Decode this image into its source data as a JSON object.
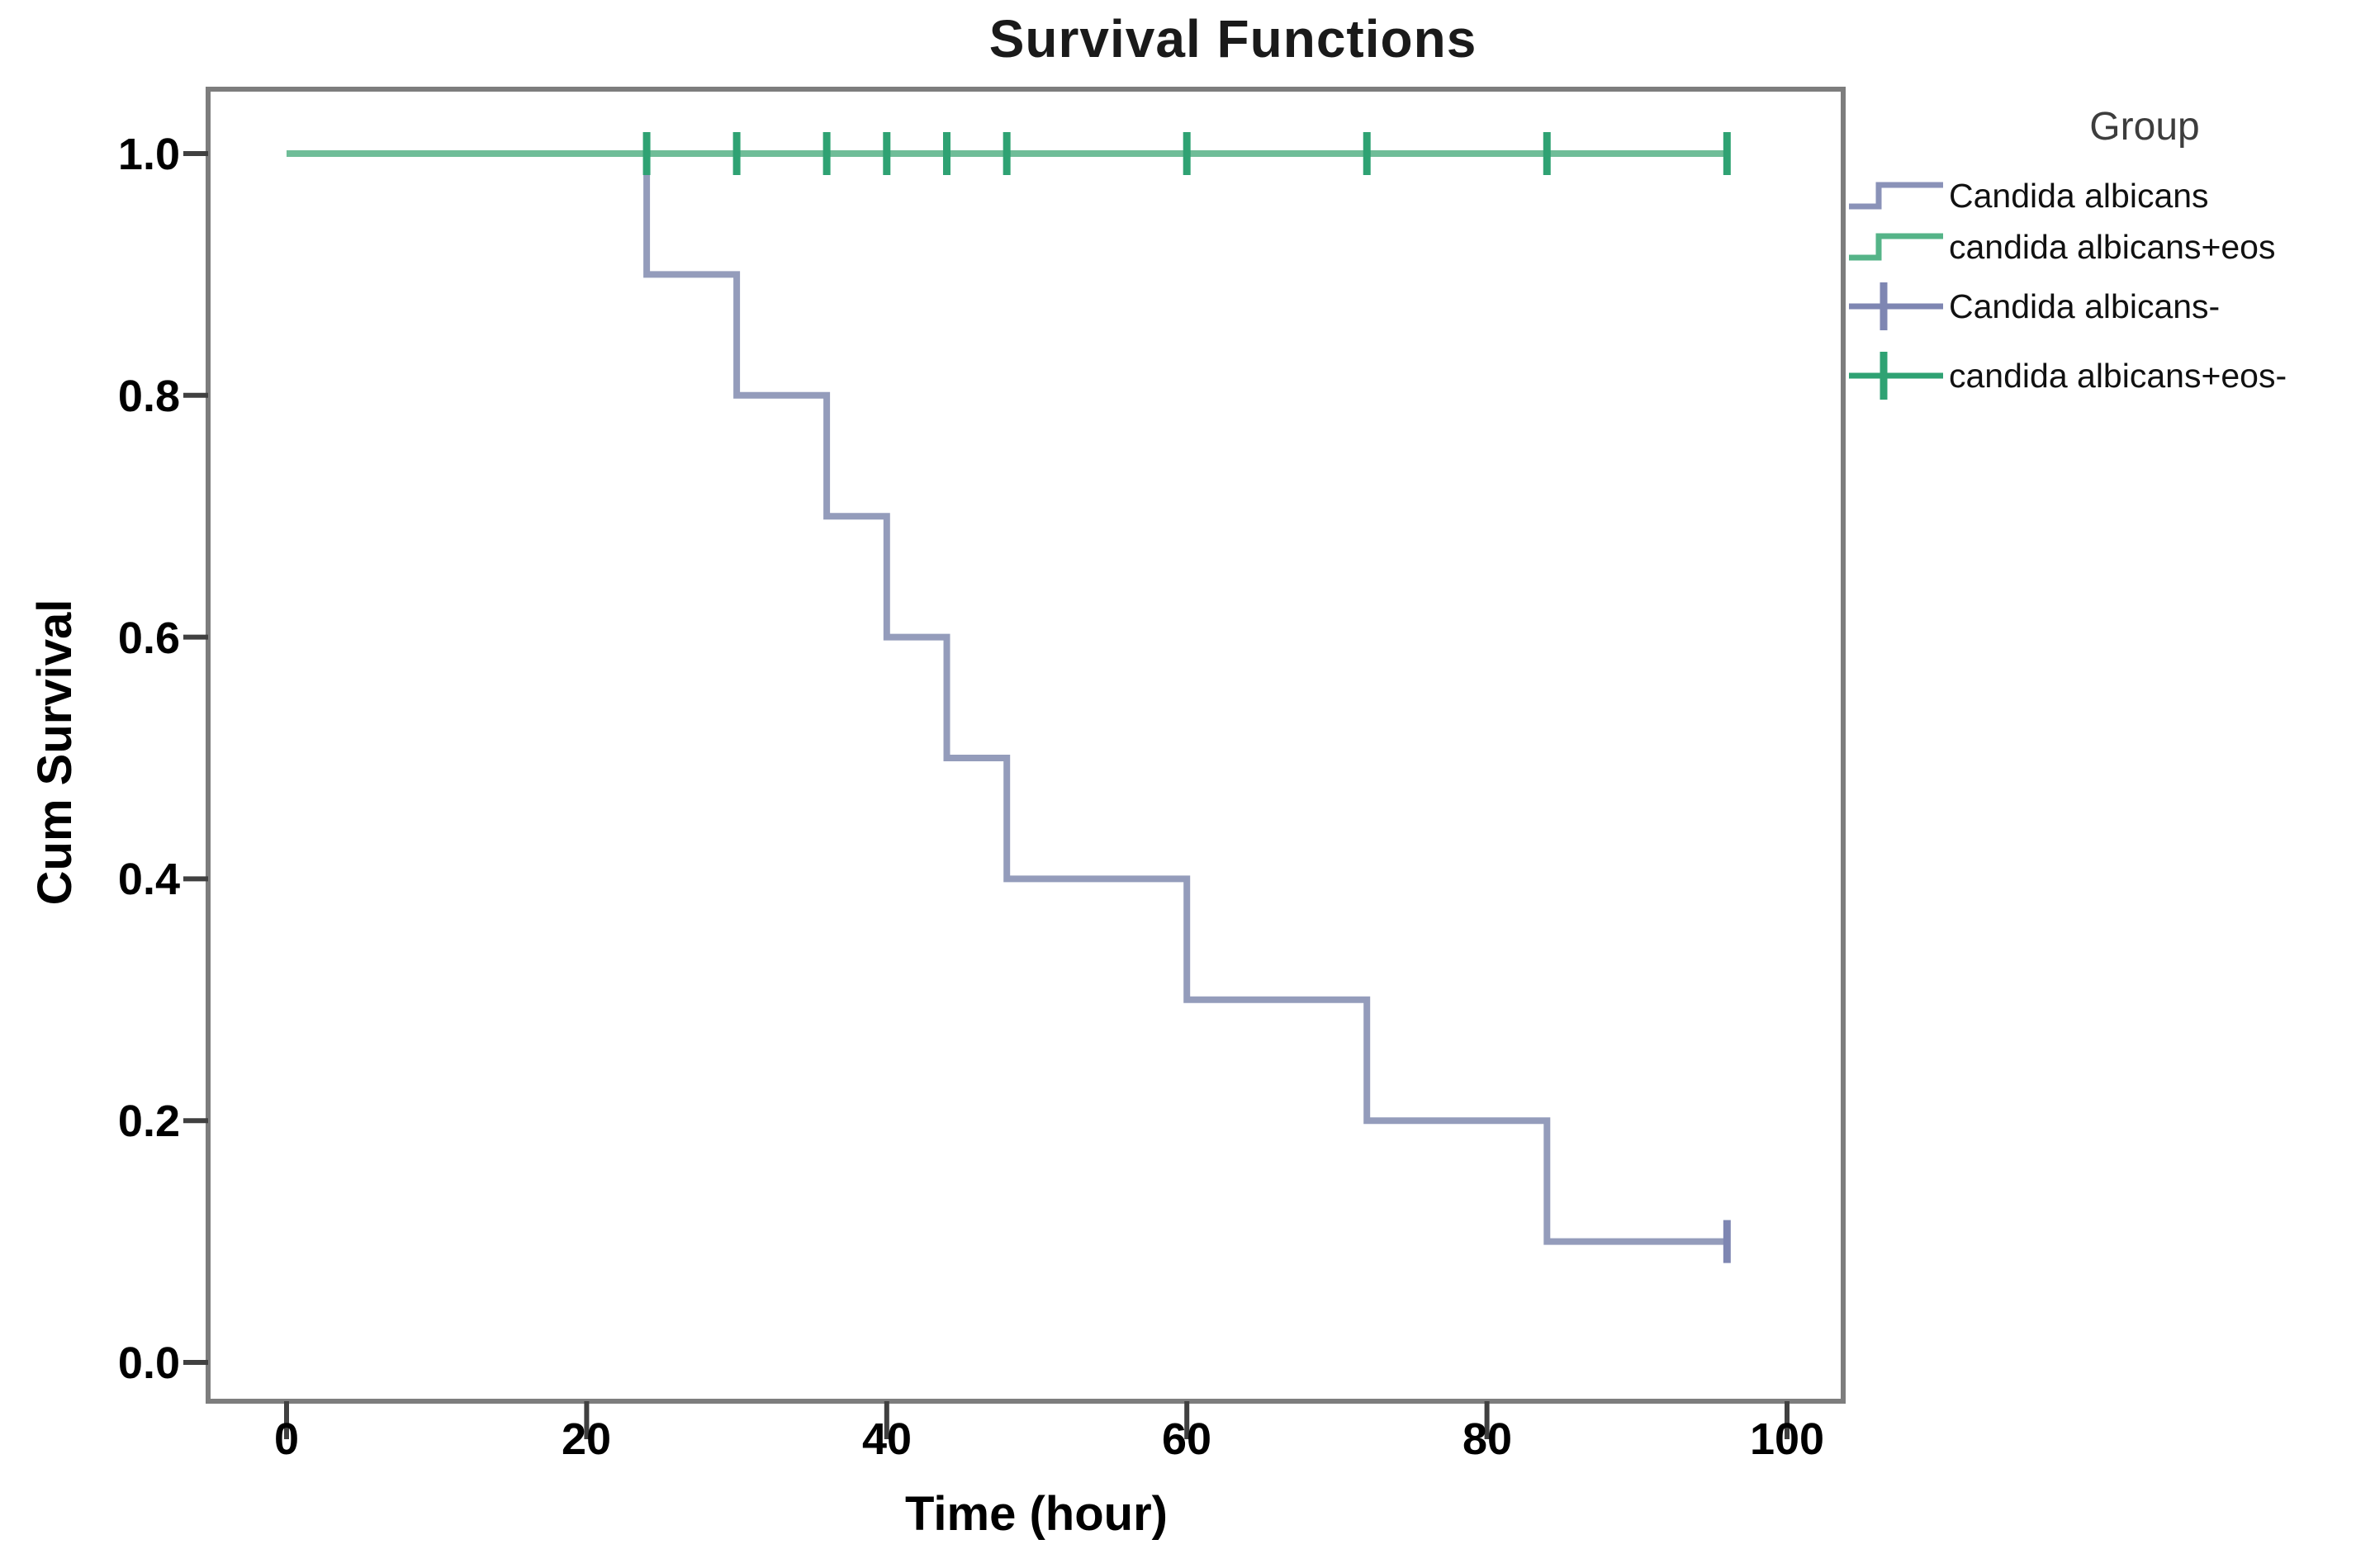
{
  "figure": {
    "title": "Survival Functions"
  },
  "legend": {
    "title": "Group",
    "items": [
      {
        "label": "Candida albicans",
        "glyph": "step-line",
        "color": "#8A92B8"
      },
      {
        "label": "candida albicans+eos",
        "glyph": "step-line",
        "color": "#55B488"
      },
      {
        "label": "Candida albicans-",
        "glyph": "censor-plus",
        "color": "#7E86B2"
      },
      {
        "label": "candida albicans+eos-",
        "glyph": "censor-plus",
        "color": "#2FA273"
      }
    ]
  },
  "chart_data": {
    "type": "line",
    "subtype": "kaplan-meier-step",
    "title": "Survival Functions",
    "xlabel": "Time (hour)",
    "ylabel": "Cum Survival",
    "xticks": [
      "0",
      "20",
      "40",
      "60",
      "80",
      "100"
    ],
    "yticks": [
      "1.0",
      "0.8",
      "0.6",
      "0.4",
      "0.2",
      "0.0"
    ],
    "xlim": [
      -5.5,
      105
    ],
    "ylim": [
      -0.055,
      1.055
    ],
    "grid": false,
    "legend_position": "right",
    "legend_title": "Group",
    "frame_color": "#7D7D7D",
    "tick_color": "#404040",
    "series": [
      {
        "name": "Candida albicans",
        "color": "#949CBB",
        "censor_color": "#7E86B2",
        "points": [
          [
            0,
            1.0
          ],
          [
            24,
            1.0
          ],
          [
            24,
            0.9
          ],
          [
            30,
            0.9
          ],
          [
            30,
            0.8
          ],
          [
            36,
            0.8
          ],
          [
            36,
            0.7
          ],
          [
            40,
            0.7
          ],
          [
            40,
            0.6
          ],
          [
            44,
            0.6
          ],
          [
            44,
            0.5
          ],
          [
            48,
            0.5
          ],
          [
            48,
            0.4
          ],
          [
            60,
            0.4
          ],
          [
            60,
            0.3
          ],
          [
            72,
            0.3
          ],
          [
            72,
            0.2
          ],
          [
            84,
            0.2
          ],
          [
            84,
            0.1
          ],
          [
            96,
            0.1
          ]
        ],
        "censored_points": [
          [
            96,
            0.1
          ]
        ]
      },
      {
        "name": "candida albicans+eos",
        "color": "#6FBD98",
        "censor_color": "#2FA273",
        "points": [
          [
            0,
            1.0
          ],
          [
            96,
            1.0
          ]
        ],
        "censored_points": [
          [
            24,
            1.0
          ],
          [
            30,
            1.0
          ],
          [
            36,
            1.0
          ],
          [
            40,
            1.0
          ],
          [
            44,
            1.0
          ],
          [
            48,
            1.0
          ],
          [
            60,
            1.0
          ],
          [
            72,
            1.0
          ],
          [
            84,
            1.0
          ],
          [
            96,
            1.0
          ]
        ]
      }
    ]
  }
}
